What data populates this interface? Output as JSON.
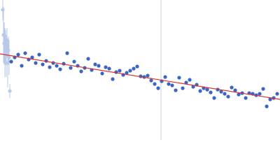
{
  "chart_data": {
    "type": "scatter",
    "xlim": [
      0,
      400
    ],
    "ylim": [
      0,
      200
    ],
    "vline": {
      "x": 230,
      "color": "#c9d2e4"
    },
    "series": [
      {
        "type": "scatter",
        "color": "#b9c9ea",
        "x": [
          4,
          5,
          6,
          7,
          8,
          9,
          10,
          11,
          12,
          13,
          14
        ],
        "values": [
          186,
          150,
          138,
          125,
          132,
          120,
          140,
          110,
          128,
          118,
          70
        ],
        "errors": [
          15,
          40,
          30,
          35,
          25,
          30,
          20,
          35,
          20,
          25,
          10
        ]
      },
      {
        "type": "scatter",
        "color": "#3b65c2",
        "x": [
          16,
          21,
          26,
          31,
          36,
          41,
          46,
          51,
          56,
          61,
          66,
          71,
          76,
          81,
          86,
          91,
          96,
          101,
          106,
          111,
          116,
          121,
          126,
          131,
          136,
          141,
          146,
          151,
          156,
          161,
          166,
          171,
          176,
          181,
          186,
          191,
          196,
          201,
          206,
          211,
          216,
          221,
          226,
          231,
          236,
          241,
          246,
          251,
          256,
          261,
          266,
          271,
          276,
          281,
          286,
          291,
          296,
          301,
          306,
          311,
          316,
          321,
          326,
          331,
          336,
          341,
          346,
          351,
          356,
          361,
          366,
          371,
          376,
          381,
          386,
          391,
          396
        ],
        "values": [
          112,
          118,
          122,
          106,
          124,
          115,
          118,
          110,
          122,
          108,
          113,
          104,
          110,
          106,
          101,
          109,
          124,
          103,
          112,
          106,
          98,
          103,
          116,
          100,
          108,
          106,
          95,
          104,
          102,
          87,
          97,
          99,
          93,
          96,
          99,
          102,
          105,
          91,
          90,
          92,
          85,
          80,
          74,
          84,
          90,
          80,
          78,
          71,
          89,
          74,
          82,
          86,
          76,
          79,
          70,
          74,
          72,
          68,
          60,
          72,
          69,
          66,
          62,
          75,
          71,
          65,
          67,
          60,
          67,
          66,
          64,
          66,
          73,
          48,
          58,
          60,
          66
        ]
      },
      {
        "type": "line",
        "color": "#d9302c",
        "x": [
          0,
          400
        ],
        "values": [
          123,
          58
        ]
      }
    ]
  }
}
